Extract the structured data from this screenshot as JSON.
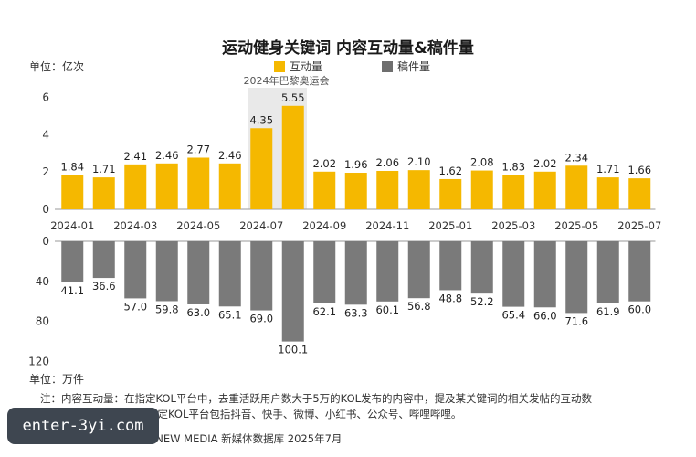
{
  "chart_data": {
    "type": "bar",
    "title": "运动健身关键词 内容互动量&稿件量",
    "categories": [
      "2024-01",
      "2024-02",
      "2024-03",
      "2024-04",
      "2024-05",
      "2024-06",
      "2024-07",
      "2024-08",
      "2024-09",
      "2024-10",
      "2024-11",
      "2024-12",
      "2025-01",
      "2025-02",
      "2025-03",
      "2025-04",
      "2025-05",
      "2025-06",
      "2025-07"
    ],
    "tick_labels": [
      "2024-01",
      "2024-03",
      "2024-05",
      "2024-07",
      "2024-09",
      "2024-11",
      "2025-01",
      "2025-03",
      "2025-05",
      "2025-07"
    ],
    "series": [
      {
        "name": "互动量",
        "unit": "单位：亿次",
        "color": "#f5b800",
        "values": [
          1.84,
          1.71,
          2.41,
          2.46,
          2.77,
          2.46,
          4.35,
          5.55,
          2.02,
          1.96,
          2.06,
          2.1,
          1.62,
          2.08,
          1.83,
          2.02,
          2.34,
          1.71,
          1.66
        ],
        "labels": [
          "1.84",
          "1.71",
          "2.41",
          "2.46",
          "2.77",
          "2.46",
          "4.35",
          "5.55",
          "2.02",
          "1.96",
          "2.06",
          "2.10",
          "1.62",
          "2.08",
          "1.83",
          "2.02",
          "2.34",
          "1.71",
          "1.66"
        ],
        "ylim": [
          0,
          6
        ],
        "yticks": [
          "0",
          "2",
          "4",
          "6"
        ]
      },
      {
        "name": "稿件量",
        "unit": "单位：万件",
        "color": "#7a7a7a",
        "values": [
          41.1,
          36.6,
          57.0,
          59.8,
          63.0,
          65.1,
          69.0,
          100.1,
          62.1,
          63.3,
          60.1,
          56.8,
          48.8,
          52.2,
          65.4,
          66.0,
          71.6,
          61.9,
          60.0
        ],
        "labels": [
          "41.1",
          "36.6",
          "57.0",
          "59.8",
          "63.0",
          "65.1",
          "69.0",
          "100.1",
          "62.1",
          "63.3",
          "60.1",
          "56.8",
          "48.8",
          "52.2",
          "65.4",
          "66.0",
          "71.6",
          "61.9",
          "60.0"
        ],
        "ylim": [
          0,
          120
        ],
        "yticks": [
          "0",
          "40",
          "80",
          "120"
        ]
      }
    ],
    "annotation": "2024年巴黎奥运会"
  },
  "texts": {
    "unit_top": "单位：亿次",
    "unit_bottom": "单位：万件",
    "legend_1": "互动量",
    "legend_2": "稿件量",
    "note_1": "注：内容互动量：在指定KOL平台中，去重活跃用户数大于5万的KOL发布的内容中，提及某关键词的相关发帖的互动数",
    "note_2": "（转发+评论+点赞）；指定KOL平台包括抖音、快手、微博、小红书、公众号、哔哩哔哩。",
    "source": "Source：QuestMobile NEW MEDIA 新媒体数据库 2025年7月",
    "watermark": "enter-3yi.com"
  },
  "colors": {
    "yellow": "#f5b800",
    "gray": "#7a7a7a",
    "highlight": "#e9e9e9"
  }
}
